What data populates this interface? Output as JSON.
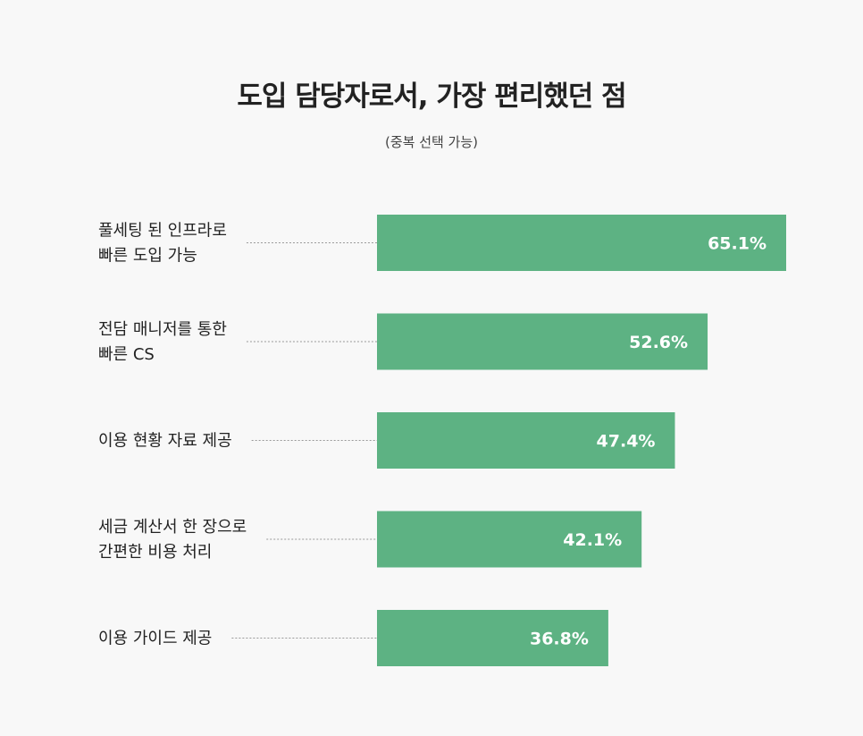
{
  "colors": {
    "bar": "#5db283",
    "bar_label": "#ffffff",
    "category_text": "#222222",
    "leader_line": "#999999",
    "background": "#f8f8f8"
  },
  "chart_data": {
    "type": "bar",
    "orientation": "horizontal",
    "title": "도입 담당자로서, 가장 편리했던 점",
    "subtitle": "(중복 선택 가능)",
    "unit": "%",
    "categories": [
      [
        "풀세팅 된 인프라로",
        "빠른 도입 가능"
      ],
      [
        "전담 매니저를 통한",
        "빠른 CS"
      ],
      [
        "이용 현황 자료 제공"
      ],
      [
        "세금 계산서 한 장으로",
        "간편한 비용 처리"
      ],
      [
        "이용 가이드 제공"
      ]
    ],
    "values": [
      65.1,
      52.6,
      47.4,
      42.1,
      36.8
    ],
    "value_labels": [
      "65.1%",
      "52.6%",
      "47.4%",
      "42.1%",
      "36.8%"
    ],
    "xlim": [
      0,
      65.1
    ],
    "grid": false,
    "legend": "none"
  }
}
